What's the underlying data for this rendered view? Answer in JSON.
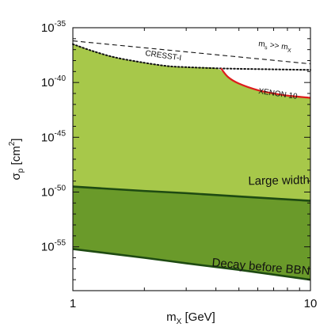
{
  "chart_data": {
    "type": "area",
    "title": "",
    "xscale": "log",
    "yscale": "log",
    "xlim": [
      1,
      10
    ],
    "ylim": [
      1e-59,
      1e-35
    ],
    "x_ticks": [
      {
        "value": 1,
        "label": "1"
      },
      {
        "value": 10,
        "label": "10"
      }
    ],
    "y_ticks": [
      {
        "value": -35,
        "base": "10",
        "exp": "-35"
      },
      {
        "value": -40,
        "base": "10",
        "exp": "-40"
      },
      {
        "value": -45,
        "base": "10",
        "exp": "-45"
      },
      {
        "value": -50,
        "base": "10",
        "exp": "-50"
      },
      {
        "value": -55,
        "base": "10",
        "exp": "-55"
      }
    ],
    "xlabel": {
      "main": "m",
      "sub": "X",
      "unit": " [GeV]"
    },
    "ylabel": {
      "main": "σ",
      "sub": "p",
      "unit_open": " [cm",
      "sup": "2",
      "unit_close": "]"
    },
    "colors": {
      "light_region": "#a7c84a",
      "dark_region": "#6a9a2a",
      "dark_line": "#1e4a12",
      "xenon_line": "#dd1c1c",
      "text": "#111111"
    },
    "series": [
      {
        "name": "Large width",
        "style": "solid",
        "x": [
          1,
          2,
          3,
          5,
          10
        ],
        "log10_y": [
          -49.5,
          -49.9,
          -50.1,
          -50.4,
          -50.8
        ]
      },
      {
        "name": "Decay before BBN",
        "style": "solid",
        "x": [
          1,
          2,
          3,
          5,
          10
        ],
        "log10_y": [
          -55.2,
          -56.0,
          -56.5,
          -57.1,
          -58.0
        ]
      },
      {
        "name": "CRESST-I",
        "style": "dotted",
        "x": [
          1,
          1.2,
          1.5,
          2,
          2.5,
          3,
          4,
          5,
          7,
          10
        ],
        "log10_y": [
          -36.5,
          -37.1,
          -37.7,
          -38.2,
          -38.5,
          -38.6,
          -38.7,
          -38.75,
          -38.8,
          -38.85
        ]
      },
      {
        "name": "XENON 10",
        "style": "solid",
        "x": [
          4.2,
          4.5,
          5,
          6,
          7,
          8,
          10
        ],
        "log10_y": [
          -38.7,
          -39.5,
          -40.1,
          -40.7,
          -41.0,
          -41.2,
          -41.4
        ]
      },
      {
        "name": "m_s >> m_X",
        "style": "dashed",
        "x": [
          1,
          10
        ],
        "log10_y": [
          -36.2,
          -38.3
        ]
      }
    ],
    "labels": {
      "large_width": "Large width",
      "decay": "Decay before BBN",
      "cresst": "CRESST-I",
      "xenon": "XENON 10",
      "ms_main": "m",
      "ms_sub": "s",
      "ms_rel": " >> m",
      "mx_sub": "X"
    }
  }
}
